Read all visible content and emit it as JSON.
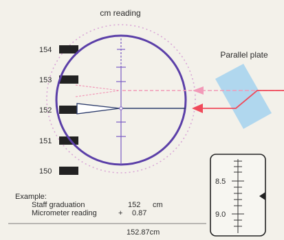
{
  "title": "cm reading",
  "plate_label": "Parallel plate",
  "staff": {
    "graduations": [
      "154",
      "153",
      "152",
      "151",
      "150"
    ]
  },
  "micrometer": {
    "labels": [
      "8.5",
      "9.0"
    ]
  },
  "example": {
    "heading": "Example:",
    "rows": [
      {
        "label": "Staff graduation",
        "op": "",
        "value": "152",
        "unit": "cm"
      },
      {
        "label": "Micrometer reading",
        "op": "+",
        "value": "0.87",
        "unit": ""
      }
    ],
    "result": "152.87cm"
  },
  "colors": {
    "circle": "#5b3fa8",
    "dotted_circle": "#d9a6d6",
    "beam": "#f04a5a",
    "beam_dashed": "#f29ab8",
    "plate": "#a9d4ee",
    "staff_block": "#222222"
  }
}
